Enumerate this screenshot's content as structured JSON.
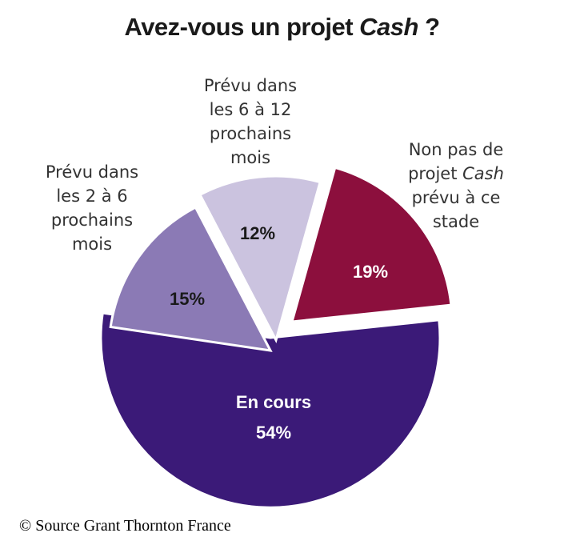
{
  "chart_data": {
    "type": "pie",
    "title_prefix": "Avez-vous un projet ",
    "title_em": "Cash",
    "title_suffix": " ?",
    "slices": [
      {
        "label_lines": [
          "En cours"
        ],
        "value": 54,
        "value_label": "54%",
        "color": "#3b1a78",
        "label_color": "#ffffff",
        "inside_label": true
      },
      {
        "label_lines": [
          "Prévu dans",
          "les 2 à 6",
          "prochains",
          "mois"
        ],
        "value": 15,
        "value_label": "15%",
        "color": "#8b7ab5",
        "label_color": "#1a1a1a",
        "inside_label": false
      },
      {
        "label_lines": [
          "Prévu dans",
          "les 6 à 12",
          "prochains",
          "mois"
        ],
        "value": 12,
        "value_label": "12%",
        "color": "#cbc3df",
        "label_color": "#1a1a1a",
        "inside_label": false
      },
      {
        "label_lines": [
          "Non pas de",
          "projet Cash",
          "prévu à ce",
          "stade"
        ],
        "value": 19,
        "value_label": "19%",
        "color": "#8c0f3d",
        "label_color": "#ffffff",
        "inside_label": false
      }
    ]
  },
  "source": "© Source Grant Thornton France"
}
